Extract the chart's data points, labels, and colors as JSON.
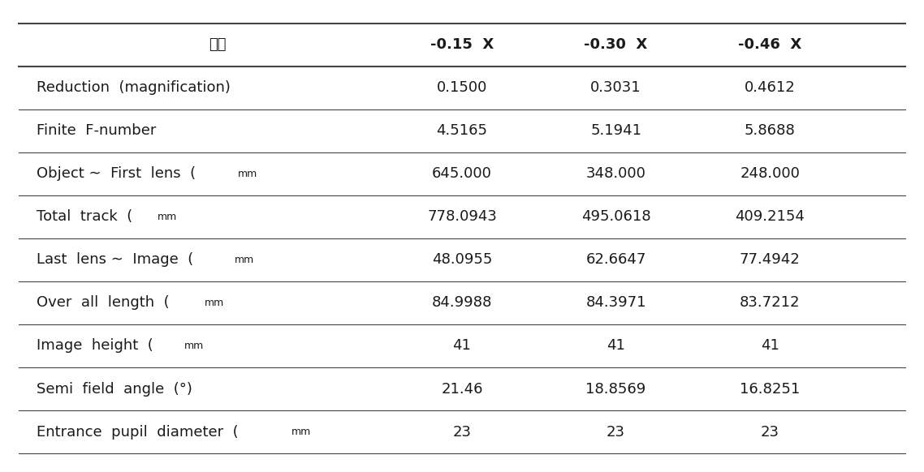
{
  "header_col": "배율",
  "columns": [
    "-0.15  X",
    "-0.30  X",
    "-0.46  X"
  ],
  "rows": [
    {
      "label": "Reduction  (magnification)",
      "label_parts": [
        [
          "Reduction  (magnification)",
          "normal",
          13
        ]
      ],
      "values": [
        "0.1500",
        "0.3031",
        "0.4612"
      ]
    },
    {
      "label": "Finite  F-number",
      "label_parts": [
        [
          "Finite  F-number",
          "normal",
          13
        ]
      ],
      "values": [
        "4.5165",
        "5.1941",
        "5.8688"
      ]
    },
    {
      "label": "Object ∼  First  lens  (mm)",
      "label_parts": [
        [
          "Object ∼  First  lens  (",
          "normal",
          13
        ],
        [
          "mm",
          "small",
          10
        ],
        [
          ")",
          "normal",
          13
        ]
      ],
      "values": [
        "645.000",
        "348.000",
        "248.000"
      ]
    },
    {
      "label": "Total  track  (mm)",
      "label_parts": [
        [
          "Total  track  (",
          "normal",
          13
        ],
        [
          "mm",
          "small",
          10
        ],
        [
          ")",
          "normal",
          13
        ]
      ],
      "values": [
        "778.0943",
        "495.0618",
        "409.2154"
      ]
    },
    {
      "label": "Last  lens ∼  Image  (mm)",
      "label_parts": [
        [
          "Last  lens ∼  Image  (",
          "normal",
          13
        ],
        [
          "mm",
          "small",
          10
        ],
        [
          ")",
          "normal",
          13
        ]
      ],
      "values": [
        "48.0955",
        "62.6647",
        "77.4942"
      ]
    },
    {
      "label": "Over  all  length  (mm)",
      "label_parts": [
        [
          "Over  all  length  (",
          "normal",
          13
        ],
        [
          "mm",
          "small",
          10
        ],
        [
          ")",
          "normal",
          13
        ]
      ],
      "values": [
        "84.9988",
        "84.3971",
        "83.7212"
      ]
    },
    {
      "label": "Image  height  (mm)",
      "label_parts": [
        [
          "Image  height  (",
          "normal",
          13
        ],
        [
          "mm",
          "small",
          10
        ],
        [
          ")",
          "normal",
          13
        ]
      ],
      "values": [
        "41",
        "41",
        "41"
      ]
    },
    {
      "label": "Semi  field  angle  (°)",
      "label_parts": [
        [
          "Semi  field  angle  (°)",
          "normal",
          13
        ]
      ],
      "values": [
        "21.46",
        "18.8569",
        "16.8251"
      ]
    },
    {
      "label": "Entrance  pupil  diameter  (mm)",
      "label_parts": [
        [
          "Entrance  pupil  diameter  (",
          "normal",
          13
        ],
        [
          "mm",
          "small",
          10
        ],
        [
          ")",
          "normal",
          13
        ]
      ],
      "values": [
        "23",
        "23",
        "23"
      ]
    }
  ],
  "bg_color": "#ffffff",
  "text_color": "#1a1a1a",
  "line_color": "#444444",
  "header_fontsize": 13,
  "body_fontsize": 13,
  "figsize": [
    11.38,
    5.82
  ],
  "dpi": 100
}
